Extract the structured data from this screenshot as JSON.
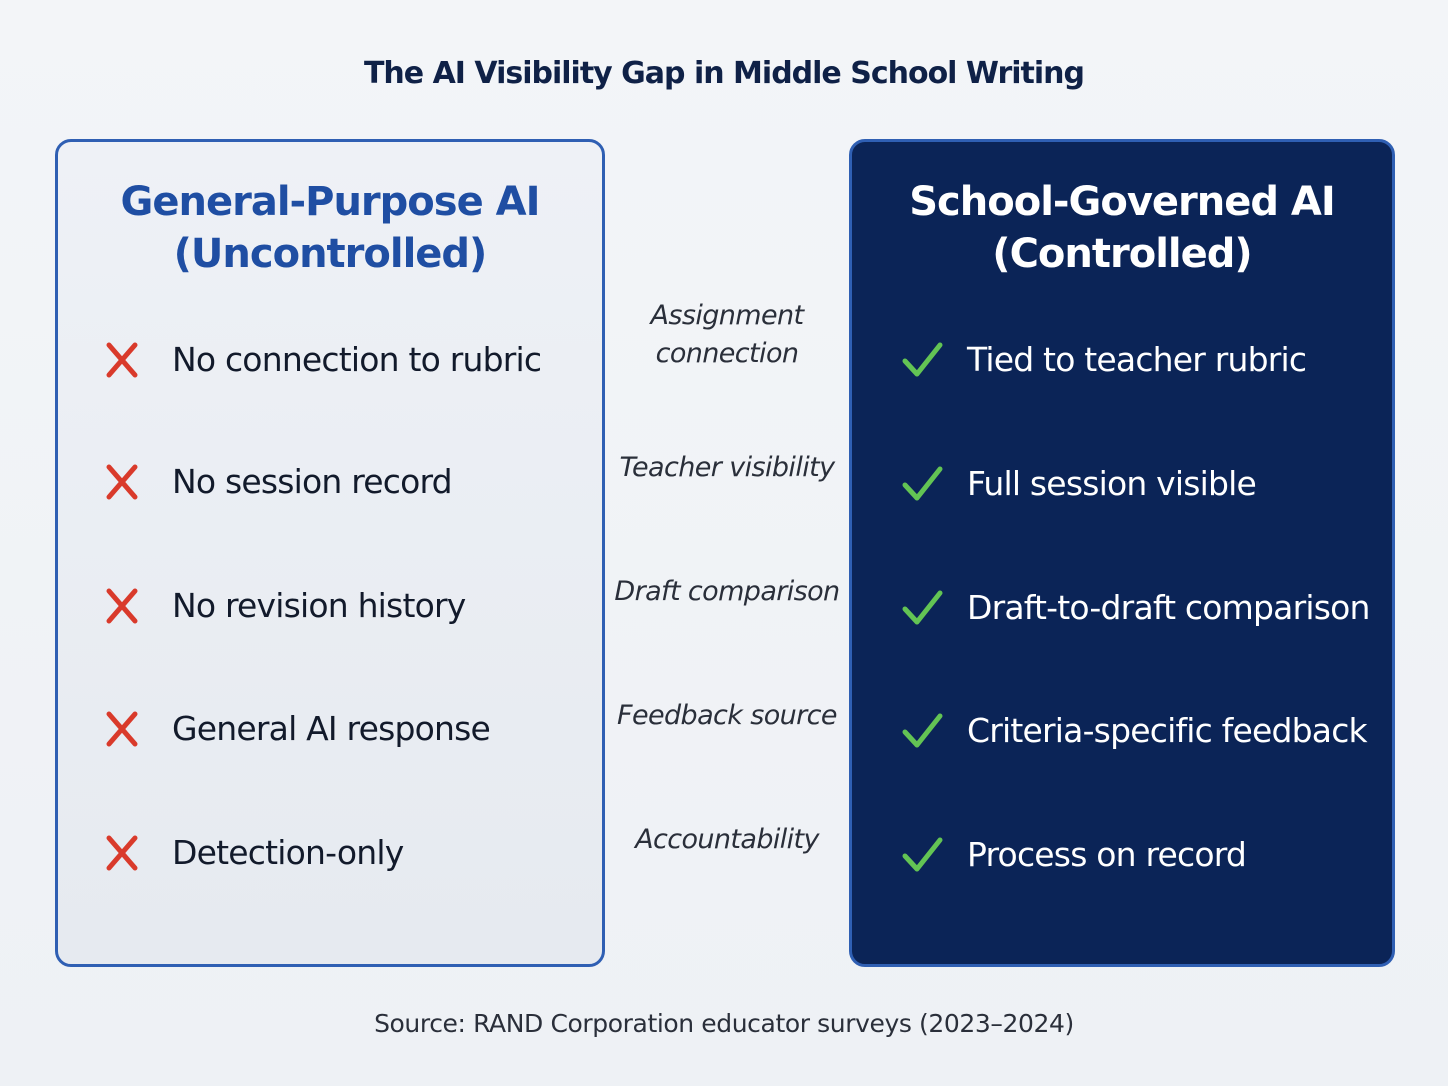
{
  "title": "The AI Visibility Gap in Middle School Writing",
  "left_panel": {
    "heading_line1": "General-Purpose AI",
    "heading_line2": "(Uncontrolled)",
    "mark_icon": "x-mark-icon",
    "mark_color": "#d93a2b",
    "items": [
      {
        "label": "No connection to rubric"
      },
      {
        "label": "No session record"
      },
      {
        "label": "No revision history"
      },
      {
        "label": "General AI response"
      },
      {
        "label": "Detection-only"
      }
    ]
  },
  "criteria": [
    {
      "line1": "Assignment",
      "line2": "connection"
    },
    {
      "line1": "Teacher visibility"
    },
    {
      "line1": "Draft comparison"
    },
    {
      "line1": "Feedback source"
    },
    {
      "line1": "Accountability"
    }
  ],
  "right_panel": {
    "heading_line1": "School-Governed AI",
    "heading_line2": "(Controlled)",
    "mark_icon": "check-mark-icon",
    "mark_color": "#63c454",
    "items": [
      {
        "label": "Tied to teacher rubric"
      },
      {
        "label": "Full session visible"
      },
      {
        "label": "Draft-to-draft comparison"
      },
      {
        "label": "Criteria-specific feedback"
      },
      {
        "label": "Process on record"
      }
    ]
  },
  "source": "Source: RAND Corporation educator surveys (2023–2024)",
  "colors": {
    "title": "#0f2147",
    "left_accent": "#1f4ea3",
    "right_background": "#0b2457",
    "border": "#2f5fb3"
  }
}
